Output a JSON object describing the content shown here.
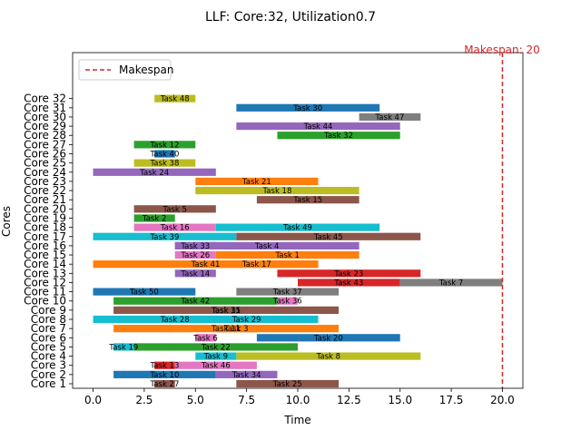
{
  "chart_data": {
    "type": "gantt",
    "title": "LLF: Core:32, Utilization0.7",
    "xlabel": "Time",
    "ylabel": "Cores",
    "xlim": [
      -1,
      21
    ],
    "xticks": [
      "0.0",
      "2.5",
      "5.0",
      "7.5",
      "10.0",
      "12.5",
      "15.0",
      "17.5",
      "20.0"
    ],
    "xtick_values": [
      0,
      2.5,
      5,
      7.5,
      10,
      12.5,
      15,
      17.5,
      20
    ],
    "categories": [
      "Core 1",
      "Core 2",
      "Core 3",
      "Core 4",
      "Core 5",
      "Core 6",
      "Core 7",
      "Core 8",
      "Core 9",
      "Core 10",
      "Core 11",
      "Core 12",
      "Core 13",
      "Core 14",
      "Core 15",
      "Core 16",
      "Core 17",
      "Core 18",
      "Core 19",
      "Core 20",
      "Core 21",
      "Core 22",
      "Core 23",
      "Core 24",
      "Core 25",
      "Core 26",
      "Core 27",
      "Core 28",
      "Core 29",
      "Core 30",
      "Core 31",
      "Core 32"
    ],
    "makespan": 20,
    "makespan_label": "Makespan: 20",
    "legend": {
      "label": "Makespan",
      "placement": "top-left"
    },
    "colors": {
      "blue": "#1f77b4",
      "orange": "#ff7f0e",
      "green": "#2ca02c",
      "red": "#d62728",
      "purple": "#9467bd",
      "brown": "#8c564b",
      "pink": "#e377c2",
      "gray": "#7f7f7f",
      "olive": "#bcbd22",
      "cyan": "#17becf",
      "makespan": "#d62728"
    },
    "tasks": [
      {
        "core": 1,
        "label": "Task 27",
        "start": 3,
        "end": 4,
        "color": "brown"
      },
      {
        "core": 1,
        "label": "Task 25",
        "start": 7,
        "end": 12,
        "color": "brown"
      },
      {
        "core": 2,
        "label": "Task 10",
        "start": 1,
        "end": 6,
        "color": "blue"
      },
      {
        "core": 2,
        "label": "Task 34",
        "start": 6,
        "end": 9,
        "color": "purple"
      },
      {
        "core": 3,
        "label": "Task 13",
        "start": 3,
        "end": 4,
        "color": "red"
      },
      {
        "core": 3,
        "label": "Task 46",
        "start": 4,
        "end": 8,
        "color": "pink"
      },
      {
        "core": 4,
        "label": "Task 9",
        "start": 5,
        "end": 7,
        "color": "cyan"
      },
      {
        "core": 4,
        "label": "Task 8",
        "start": 7,
        "end": 16,
        "color": "olive"
      },
      {
        "core": 5,
        "label": "Task 19",
        "start": 1,
        "end": 2,
        "color": "cyan"
      },
      {
        "core": 5,
        "label": "Task 22",
        "start": 2,
        "end": 10,
        "color": "green"
      },
      {
        "core": 6,
        "label": "Task 6",
        "start": 5,
        "end": 6,
        "color": "pink"
      },
      {
        "core": 6,
        "label": "Task 20",
        "start": 8,
        "end": 15,
        "color": "blue"
      },
      {
        "core": 7,
        "label": "Task 11",
        "start": 1,
        "end": 12,
        "color": "orange"
      },
      {
        "core": 7,
        "label": "Task 3",
        "start": 6,
        "end": 8,
        "color": "orange"
      },
      {
        "core": 8,
        "label": "Task 28",
        "start": 0,
        "end": 8,
        "color": "cyan"
      },
      {
        "core": 8,
        "label": "Task 29",
        "start": 4,
        "end": 11,
        "color": "cyan"
      },
      {
        "core": 9,
        "label": "Task 15",
        "start": 1,
        "end": 12,
        "color": "brown"
      },
      {
        "core": 9,
        "label": "Task 31",
        "start": 6,
        "end": 7,
        "color": "brown"
      },
      {
        "core": 10,
        "label": "Task 42",
        "start": 1,
        "end": 9,
        "color": "green"
      },
      {
        "core": 10,
        "label": "Task 36",
        "start": 9,
        "end": 10,
        "color": "pink"
      },
      {
        "core": 11,
        "label": "Task 50",
        "start": 0,
        "end": 5,
        "color": "blue"
      },
      {
        "core": 11,
        "label": "Task 37",
        "start": 7,
        "end": 12,
        "color": "gray"
      },
      {
        "core": 12,
        "label": "Task 43",
        "start": 10,
        "end": 15,
        "color": "red"
      },
      {
        "core": 12,
        "label": "Task 7",
        "start": 15,
        "end": 20,
        "color": "gray"
      },
      {
        "core": 13,
        "label": "Task 14",
        "start": 4,
        "end": 6,
        "color": "purple"
      },
      {
        "core": 13,
        "label": "Task 23",
        "start": 9,
        "end": 16,
        "color": "red"
      },
      {
        "core": 14,
        "label": "Task 41",
        "start": 0,
        "end": 11,
        "color": "orange"
      },
      {
        "core": 14,
        "label": "Task 17",
        "start": 5,
        "end": 11,
        "color": "orange"
      },
      {
        "core": 15,
        "label": "Task 26",
        "start": 4,
        "end": 6,
        "color": "pink"
      },
      {
        "core": 15,
        "label": "Task 1",
        "start": 6,
        "end": 13,
        "color": "orange"
      },
      {
        "core": 16,
        "label": "Task 33",
        "start": 4,
        "end": 6,
        "color": "purple"
      },
      {
        "core": 16,
        "label": "Task 4",
        "start": 4,
        "end": 13,
        "color": "purple"
      },
      {
        "core": 17,
        "label": "Task 39",
        "start": 0,
        "end": 7,
        "color": "cyan"
      },
      {
        "core": 17,
        "label": "Task 45",
        "start": 7,
        "end": 16,
        "color": "brown"
      },
      {
        "core": 18,
        "label": "Task 16",
        "start": 2,
        "end": 6,
        "color": "pink"
      },
      {
        "core": 18,
        "label": "Task 49",
        "start": 6,
        "end": 14,
        "color": "cyan"
      },
      {
        "core": 19,
        "label": "Task 2",
        "start": 2,
        "end": 4,
        "color": "green"
      },
      {
        "core": 20,
        "label": "Task 5",
        "start": 2,
        "end": 6,
        "color": "brown"
      },
      {
        "core": 21,
        "label": "Task 15",
        "start": 8,
        "end": 13,
        "color": "brown"
      },
      {
        "core": 22,
        "label": "Task 18",
        "start": 5,
        "end": 13,
        "color": "olive"
      },
      {
        "core": 23,
        "label": "Task 21",
        "start": 5,
        "end": 11,
        "color": "orange"
      },
      {
        "core": 24,
        "label": "Task 24",
        "start": 0,
        "end": 6,
        "color": "purple"
      },
      {
        "core": 25,
        "label": "Task 38",
        "start": 2,
        "end": 5,
        "color": "olive"
      },
      {
        "core": 26,
        "label": "Task 40",
        "start": 3,
        "end": 4,
        "color": "blue"
      },
      {
        "core": 27,
        "label": "Task 12",
        "start": 2,
        "end": 5,
        "color": "green"
      },
      {
        "core": 28,
        "label": "Task 32",
        "start": 9,
        "end": 15,
        "color": "green"
      },
      {
        "core": 29,
        "label": "Task 44",
        "start": 7,
        "end": 15,
        "color": "purple"
      },
      {
        "core": 30,
        "label": "Task 47",
        "start": 13,
        "end": 16,
        "color": "gray"
      },
      {
        "core": 31,
        "label": "Task 30",
        "start": 7,
        "end": 14,
        "color": "blue"
      },
      {
        "core": 32,
        "label": "Task 48",
        "start": 3,
        "end": 5,
        "color": "olive"
      }
    ]
  }
}
